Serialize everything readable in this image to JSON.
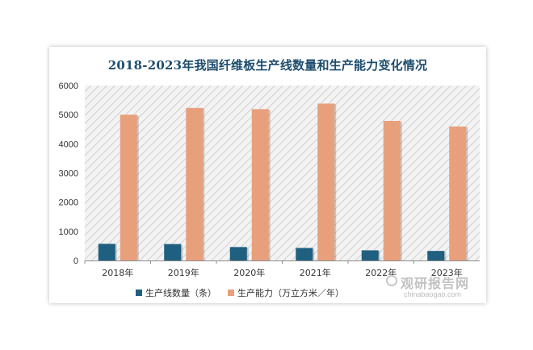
{
  "chart_data": {
    "type": "bar",
    "title": "2018-2023年我国纤维板生产线数量和生产能力变化情况",
    "categories": [
      "2018年",
      "2019年",
      "2020年",
      "2021年",
      "2022年",
      "2023年"
    ],
    "series": [
      {
        "name": "生产线数量（条）",
        "color": "#1f5f7f",
        "values": [
          571,
          563,
          461,
          430,
          348,
          327
        ]
      },
      {
        "name": "生产能力（万立方米／年）",
        "color": "#e8a07c",
        "values": [
          4998,
          5231,
          5189,
          5380,
          4785,
          4594
        ]
      }
    ],
    "yticks": [
      "0",
      "1000",
      "2000",
      "3000",
      "4000",
      "5000",
      "6000"
    ],
    "ylim": [
      0,
      6000
    ],
    "legend_position": "bottom",
    "grid": false
  },
  "watermark": {
    "name": "观研报告网",
    "url": "chinabaogao.com"
  }
}
